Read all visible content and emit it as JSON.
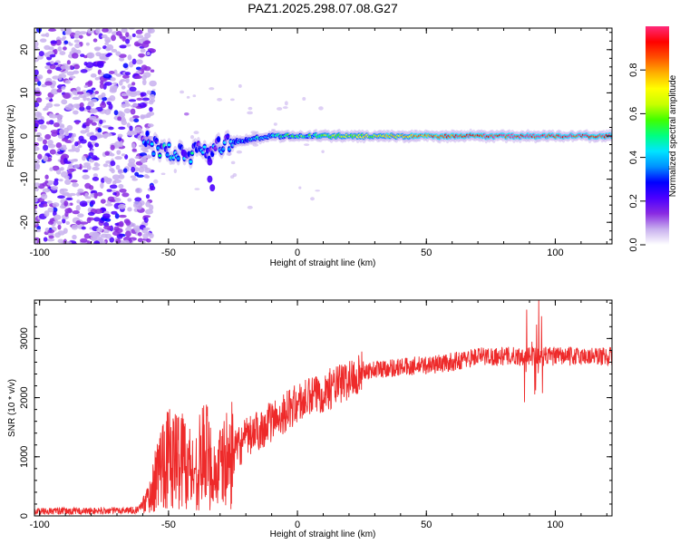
{
  "title": "PAZ1.2025.298.07.08.G27",
  "chart_data": [
    {
      "type": "heatmap",
      "name": "spectrogram",
      "xlabel": "Height of straight line (km)",
      "ylabel": "Frequency (Hz)",
      "xlim": [
        -102,
        122
      ],
      "ylim": [
        -25,
        25
      ],
      "xticks": [
        "-100",
        "-50",
        "0",
        "50",
        "100"
      ],
      "yticks": [
        "-20",
        "-10",
        "0",
        "10",
        "20"
      ],
      "description_of_data": {
        "noise_region_km": [
          -102,
          -60
        ],
        "tone_start_km": -60,
        "tone_freq_hz": 0,
        "peak_track_freq_hz": [
          [
            -58,
            -2
          ],
          [
            -52,
            -3
          ],
          [
            -46,
            -4
          ],
          [
            -42,
            -5
          ],
          [
            -38,
            -2
          ],
          [
            -33,
            -4
          ],
          [
            -30,
            -2
          ],
          [
            -20,
            -1
          ],
          [
            -10,
            0
          ],
          [
            0,
            0
          ],
          [
            20,
            0
          ],
          [
            50,
            0
          ],
          [
            100,
            0
          ],
          [
            122,
            0
          ]
        ]
      },
      "colorbar": {
        "label": "Normalized spectral amplitude",
        "ticks": [
          "0.0",
          "0.2",
          "0.4",
          "0.6",
          "0.8"
        ],
        "range": [
          0,
          1
        ],
        "colors": [
          "#ffffff",
          "#c8b0ee",
          "#8a2be2",
          "#4b00ff",
          "#0000ff",
          "#0090ff",
          "#00e5ff",
          "#00ff80",
          "#40ff00",
          "#c8ff00",
          "#ffff00",
          "#ffb000",
          "#ff5000",
          "#ff0000",
          "#ff2a7a"
        ]
      }
    },
    {
      "type": "line",
      "name": "snr",
      "xlabel": "Height of straight line (km)",
      "ylabel": "SNR (10 * v/v)",
      "xlim": [
        -102,
        122
      ],
      "ylim": [
        0,
        3650
      ],
      "xticks": [
        "-100",
        "-50",
        "0",
        "50",
        "100"
      ],
      "yticks": [
        "0",
        "1000",
        "2000",
        "3000"
      ],
      "color": "#ee2a2a",
      "envelope_mean": [
        [
          -102,
          80
        ],
        [
          -80,
          80
        ],
        [
          -62,
          100
        ],
        [
          -57,
          350
        ],
        [
          -52,
          1000
        ],
        [
          -48,
          950
        ],
        [
          -44,
          1000
        ],
        [
          -40,
          700
        ],
        [
          -36,
          1100
        ],
        [
          -32,
          700
        ],
        [
          -28,
          900
        ],
        [
          -20,
          1300
        ],
        [
          -10,
          1600
        ],
        [
          0,
          1900
        ],
        [
          10,
          2100
        ],
        [
          20,
          2300
        ],
        [
          25,
          2450
        ],
        [
          35,
          2500
        ],
        [
          50,
          2550
        ],
        [
          60,
          2600
        ],
        [
          70,
          2700
        ],
        [
          80,
          2700
        ],
        [
          90,
          2700
        ],
        [
          100,
          2700
        ],
        [
          110,
          2700
        ],
        [
          122,
          2700
        ]
      ]
    }
  ]
}
